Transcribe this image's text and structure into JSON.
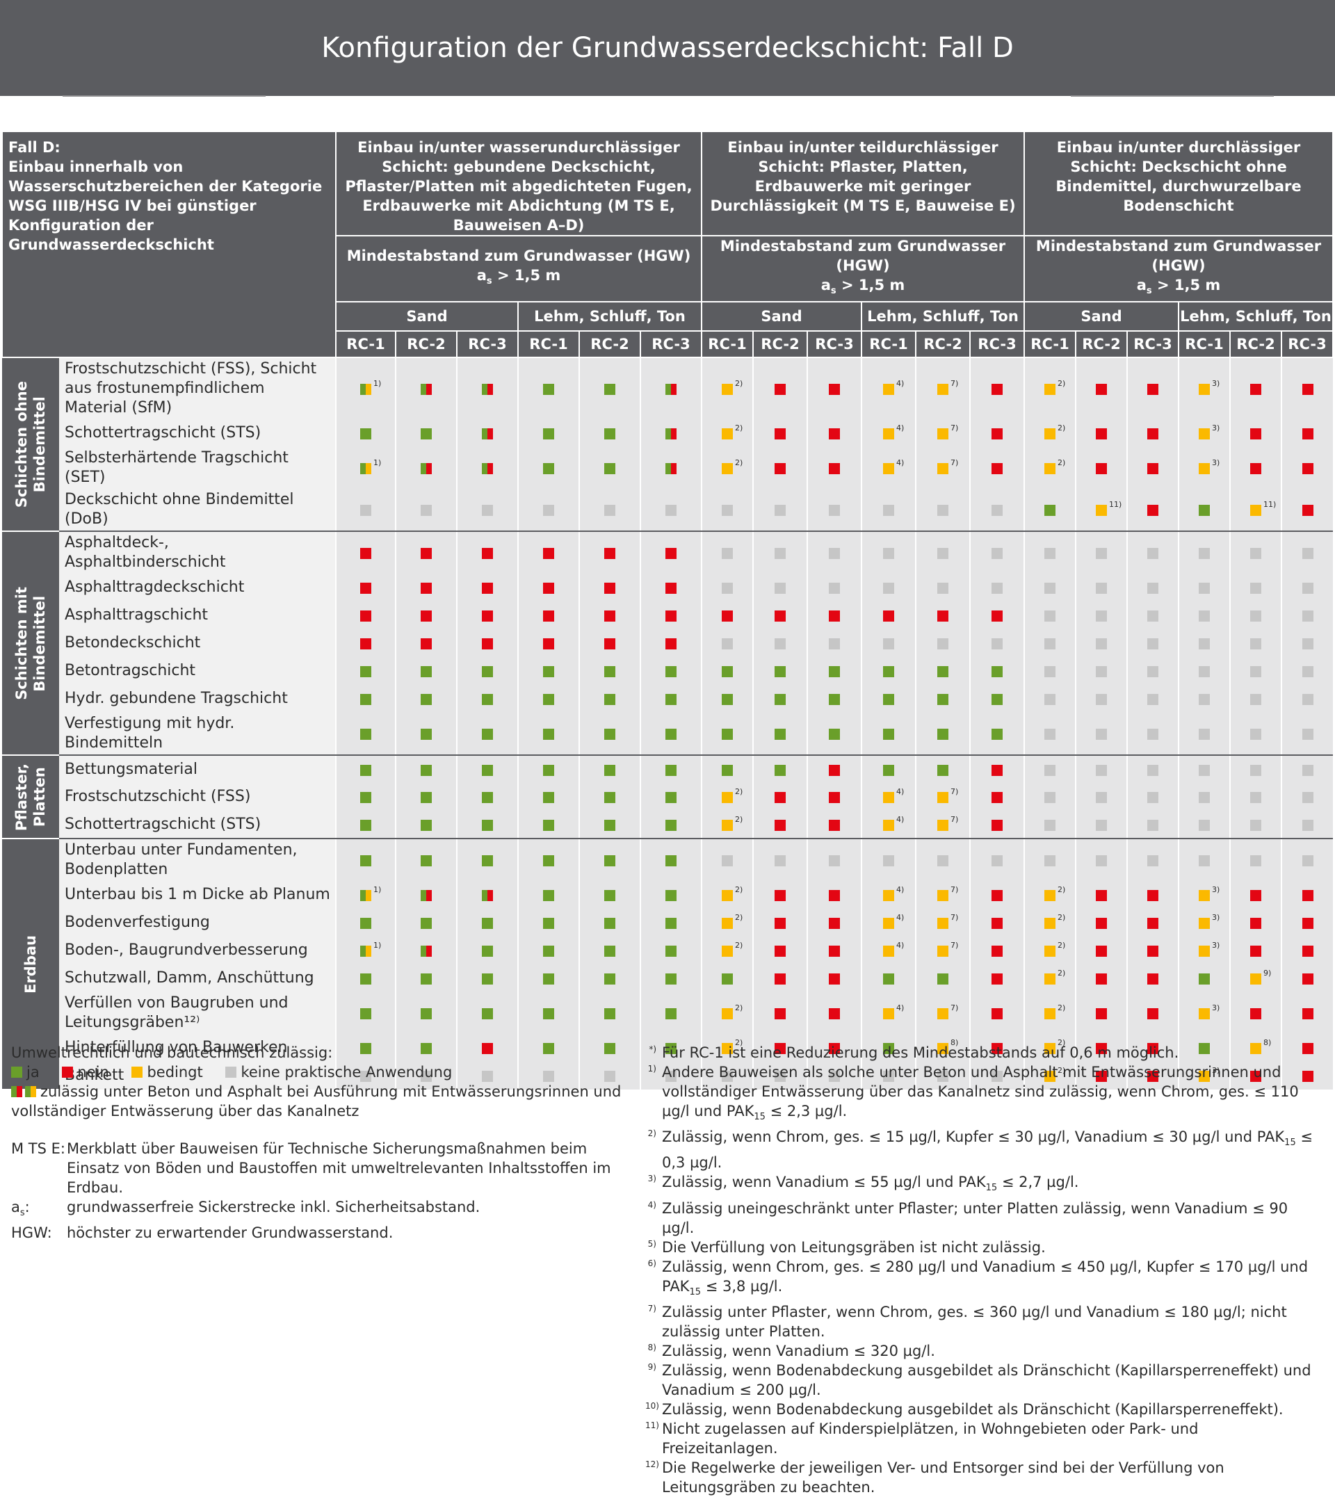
{
  "title": "Konfiguration der Grundwasserdeckschicht: Fall D",
  "corner_text": "Fall D:\nEinbau innerhalb von Wasserschutzbereichen der Kategorie WSG IIIB/HSG IV bei günstiger Konfiguration der Grundwasserdeckschicht",
  "sections": [
    {
      "title": "Einbau in/unter wasserundurchlässiger Schicht: gebundene Deckschicht, Pflaster/Platten mit abgedichteten Fugen, Erdbauwerke mit Abdichtung (M TS E, Bauweisen A–D)",
      "distance_line1": "Mindestabstand zum Grundwasser (HGW)",
      "distance_a": "a",
      "distance_s": "s",
      "distance_rest": " > 1,5 m"
    },
    {
      "title": "Einbau in/unter teildurchlässiger Schicht: Pflaster, Platten, Erdbauwerke mit geringer Durchlässigkeit (M TS E, Bauweise E)",
      "distance_line1": "Mindestabstand zum Grundwasser (HGW)",
      "distance_a": "a",
      "distance_s": "s",
      "distance_rest": " > 1,5 m"
    },
    {
      "title": "Einbau in/unter durchlässiger Schicht: Deckschicht ohne Bindemittel, durchwurzelbare Bodenschicht",
      "distance_line1": "Mindestabstand zum Grundwasser (HGW)",
      "distance_a": "a",
      "distance_s": "s",
      "distance_rest": " > 1,5 m"
    }
  ],
  "soil_types": [
    "Sand",
    "Lehm, Schluff, Ton",
    "Sand",
    "Lehm, Schluff, Ton",
    "Sand",
    "Lehm, Schluff, Ton"
  ],
  "rc_labels": [
    "RC-1",
    "RC-2",
    "RC-3",
    "RC-1",
    "RC-2",
    "RC-3",
    "RC-1",
    "RC-2",
    "RC-3",
    "RC-1",
    "RC-2",
    "RC-3",
    "RC-1",
    "RC-2",
    "RC-3",
    "RC-1",
    "RC-2",
    "RC-3"
  ],
  "status_colors": {
    "g": "#6a9f2a",
    "r": "#e30613",
    "y": "#fbb900",
    "n": "#c6c6c6"
  },
  "groups": [
    {
      "label": "Schichten ohne\nBindemittel",
      "rows": [
        {
          "label": "Frostschutzschicht (FSS), Schicht aus frostunempfindlichem Material (SfM)",
          "cells": [
            "gy|1)",
            "gr",
            "gr",
            "g",
            "g",
            "gr",
            "y|2)",
            "r",
            "r",
            "y|4)",
            "y|7)",
            "r",
            "y|2)",
            "r",
            "r",
            "y|3)",
            "r",
            "r"
          ]
        },
        {
          "label": "Schottertragschicht (STS)",
          "cells": [
            "g",
            "g",
            "gr",
            "g",
            "g",
            "gr",
            "y|2)",
            "r",
            "r",
            "y|4)",
            "y|7)",
            "r",
            "y|2)",
            "r",
            "r",
            "y|3)",
            "r",
            "r"
          ]
        },
        {
          "label": "Selbsterhärtende Tragschicht (SET)",
          "cells": [
            "gy|1)",
            "gr",
            "gr",
            "g",
            "g",
            "gr",
            "y|2)",
            "r",
            "r",
            "y|4)",
            "y|7)",
            "r",
            "y|2)",
            "r",
            "r",
            "y|3)",
            "r",
            "r"
          ]
        },
        {
          "label": "Deckschicht ohne Bindemittel (DoB)",
          "cells": [
            "n",
            "n",
            "n",
            "n",
            "n",
            "n",
            "n",
            "n",
            "n",
            "n",
            "n",
            "n",
            "g",
            "y|11)",
            "r",
            "g",
            "y|11)",
            "r"
          ]
        }
      ]
    },
    {
      "label": "Schichten mit\nBindemittel",
      "rows": [
        {
          "label": "Asphaltdeck-, Asphaltbinderschicht",
          "cells": [
            "r",
            "r",
            "r",
            "r",
            "r",
            "r",
            "n",
            "n",
            "n",
            "n",
            "n",
            "n",
            "n",
            "n",
            "n",
            "n",
            "n",
            "n"
          ]
        },
        {
          "label": "Asphalttragdeckschicht",
          "cells": [
            "r",
            "r",
            "r",
            "r",
            "r",
            "r",
            "n",
            "n",
            "n",
            "n",
            "n",
            "n",
            "n",
            "n",
            "n",
            "n",
            "n",
            "n"
          ]
        },
        {
          "label": "Asphalttragschicht",
          "cells": [
            "r",
            "r",
            "r",
            "r",
            "r",
            "r",
            "r",
            "r",
            "r",
            "r",
            "r",
            "r",
            "n",
            "n",
            "n",
            "n",
            "n",
            "n"
          ]
        },
        {
          "label": "Betondeckschicht",
          "cells": [
            "r",
            "r",
            "r",
            "r",
            "r",
            "r",
            "n",
            "n",
            "n",
            "n",
            "n",
            "n",
            "n",
            "n",
            "n",
            "n",
            "n",
            "n"
          ]
        },
        {
          "label": "Betontragschicht",
          "cells": [
            "g",
            "g",
            "g",
            "g",
            "g",
            "g",
            "g",
            "g",
            "g",
            "g",
            "g",
            "g",
            "n",
            "n",
            "n",
            "n",
            "n",
            "n"
          ]
        },
        {
          "label": "Hydr. gebundene Tragschicht",
          "cells": [
            "g",
            "g",
            "g",
            "g",
            "g",
            "g",
            "g",
            "g",
            "g",
            "g",
            "g",
            "g",
            "n",
            "n",
            "n",
            "n",
            "n",
            "n"
          ]
        },
        {
          "label": "Verfestigung mit hydr. Bindemitteln",
          "cells": [
            "g",
            "g",
            "g",
            "g",
            "g",
            "g",
            "g",
            "g",
            "g",
            "g",
            "g",
            "g",
            "n",
            "n",
            "n",
            "n",
            "n",
            "n"
          ]
        }
      ]
    },
    {
      "label": "Pflaster,\nPlatten",
      "rows": [
        {
          "label": "Bettungsmaterial",
          "cells": [
            "g",
            "g",
            "g",
            "g",
            "g",
            "g",
            "g",
            "g",
            "r",
            "g",
            "g",
            "r",
            "n",
            "n",
            "n",
            "n",
            "n",
            "n"
          ]
        },
        {
          "label": "Frostschutzschicht (FSS)",
          "cells": [
            "g",
            "g",
            "g",
            "g",
            "g",
            "g",
            "y|2)",
            "r",
            "r",
            "y|4)",
            "y|7)",
            "r",
            "n",
            "n",
            "n",
            "n",
            "n",
            "n"
          ]
        },
        {
          "label": "Schottertragschicht (STS)",
          "cells": [
            "g",
            "g",
            "g",
            "g",
            "g",
            "g",
            "y|2)",
            "r",
            "r",
            "y|4)",
            "y|7)",
            "r",
            "n",
            "n",
            "n",
            "n",
            "n",
            "n"
          ]
        }
      ]
    },
    {
      "label": "Erdbau",
      "rows": [
        {
          "label": "Unterbau unter Fundamenten, Bodenplatten",
          "cells": [
            "g",
            "g",
            "g",
            "g",
            "g",
            "g",
            "n",
            "n",
            "n",
            "n",
            "n",
            "n",
            "n",
            "n",
            "n",
            "n",
            "n",
            "n"
          ]
        },
        {
          "label": "Unterbau bis 1 m Dicke ab Planum",
          "cells": [
            "gy|1)",
            "gr",
            "gr",
            "g",
            "g",
            "g",
            "y|2)",
            "r",
            "r",
            "y|4)",
            "y|7)",
            "r",
            "y|2)",
            "r",
            "r",
            "y|3)",
            "r",
            "r"
          ]
        },
        {
          "label": "Bodenverfestigung",
          "cells": [
            "g",
            "g",
            "g",
            "g",
            "g",
            "g",
            "y|2)",
            "r",
            "r",
            "y|4)",
            "y|7)",
            "r",
            "y|2)",
            "r",
            "r",
            "y|3)",
            "r",
            "r"
          ]
        },
        {
          "label": "Boden-, Baugrundverbesserung",
          "cells": [
            "gy|1)",
            "gr",
            "g",
            "g",
            "g",
            "g",
            "y|2)",
            "r",
            "r",
            "y|4)",
            "y|7)",
            "r",
            "y|2)",
            "r",
            "r",
            "y|3)",
            "r",
            "r"
          ]
        },
        {
          "label": "Schutzwall, Damm, Anschüttung",
          "cells": [
            "g",
            "g",
            "g",
            "g",
            "g",
            "g",
            "g",
            "r",
            "r",
            "g",
            "g",
            "r",
            "y|2)",
            "r",
            "r",
            "g",
            "y|9)",
            "r"
          ]
        },
        {
          "label": "Verfüllen von Baugruben und Leitungsgräben¹²⁾",
          "cells": [
            "g",
            "g",
            "g",
            "g",
            "g",
            "g",
            "y|2)",
            "r",
            "r",
            "y|4)",
            "y|7)",
            "r",
            "y|2)",
            "r",
            "r",
            "y|3)",
            "r",
            "r"
          ]
        },
        {
          "label": "Hinterfüllung von Bauwerken",
          "cells": [
            "g",
            "g",
            "r",
            "g",
            "g",
            "g",
            "y|2)",
            "r",
            "r",
            "g",
            "y|8)",
            "r",
            "y|2)",
            "r",
            "r",
            "g",
            "y|8)",
            "r"
          ]
        },
        {
          "label": "Bankett",
          "cells": [
            "n",
            "n",
            "n",
            "n",
            "n",
            "n",
            "n",
            "n",
            "n",
            "n",
            "n",
            "n",
            "y|2)",
            "r",
            "r",
            "y|3)",
            "r",
            "r"
          ]
        }
      ]
    }
  ],
  "legend": {
    "heading": "Umweltrechtlich und bautechnisch zulässig:",
    "ja": "ja",
    "nein": "nein",
    "bedingt": "bedingt",
    "keine": "keine praktische Anwendung",
    "mixed_text": "zulässig unter Beton und Asphalt bei Ausführung mit Entwässerungsrinnen und vollständiger Entwässerung über das Kanalnetz",
    "defs": [
      {
        "term": "M TS E:",
        "text": "Merkblatt über Bauweisen für Technische Sicherungsmaßnahmen beim Einsatz von Böden und Baustoffen mit umweltrelevanten Inhaltsstoffen im Erdbau."
      },
      {
        "term": "a",
        "term_sub": "s",
        "term_end": ":",
        "text": "grundwasserfreie Sickerstrecke inkl. Sicherheitsabstand."
      },
      {
        "term": "HGW:",
        "text": "höchster zu erwartender Grundwasserstand."
      }
    ]
  },
  "notes": [
    {
      "key": "*)",
      "text": "Für RC-1 ist eine Reduzierung des Mindestabstands auf 0,6 m möglich."
    },
    {
      "key": "1)",
      "text": "Andere Bauweisen als solche unter Beton und Asphalt mit Entwässerungsrinnen und vollständiger Entwässerung über das Kanalnetz sind zulässig, wenn Chrom, ges. ≤ 110 µg/l und PAK",
      "sub": "15",
      "tail": " ≤ 2,3 µg/l."
    },
    {
      "key": "2)",
      "text": "Zulässig, wenn Chrom, ges. ≤ 15 µg/l, Kupfer ≤ 30 µg/l, Vanadium ≤ 30 µg/l und PAK",
      "sub": "15",
      "tail": " ≤ 0,3 µg/l."
    },
    {
      "key": "3)",
      "text": "Zulässig, wenn Vanadium ≤ 55 µg/l und PAK",
      "sub": "15",
      "tail": " ≤ 2,7 µg/l."
    },
    {
      "key": "4)",
      "text": "Zulässig uneingeschränkt unter Pflaster; unter Platten zulässig, wenn Vanadium ≤ 90 µg/l."
    },
    {
      "key": "5)",
      "text": "Die Verfüllung von Leitungsgräben ist nicht zulässig."
    },
    {
      "key": "6)",
      "text": "Zulässig, wenn Chrom, ges. ≤ 280 µg/l und Vanadium ≤ 450 µg/l, Kupfer ≤ 170 µg/l und PAK",
      "sub": "15",
      "tail": " ≤ 3,8 µg/l."
    },
    {
      "key": "7)",
      "text": "Zulässig unter Pflaster, wenn Chrom, ges. ≤ 360 µg/l und Vanadium ≤ 180 µg/l; nicht zulässig unter Platten."
    },
    {
      "key": "8)",
      "text": "Zulässig, wenn Vanadium ≤ 320 µg/l."
    },
    {
      "key": "9)",
      "text": "Zulässig, wenn Bodenabdeckung ausgebildet als Dränschicht (Kapillarsperreneffekt) und Vanadium ≤ 200 µg/l."
    },
    {
      "key": "10)",
      "text": "Zulässig, wenn Bodenabdeckung ausgebildet als Dränschicht (Kapillarsperreneffekt)."
    },
    {
      "key": "11)",
      "text": "Nicht zugelassen auf Kinderspielplätzen, in Wohngebieten oder Park- und Freizeitanlagen."
    },
    {
      "key": "12)",
      "text": "Die Regelwerke der jeweiligen Ver- und Entsorger sind bei der Verfüllung von Leitungsgräben zu beachten."
    }
  ]
}
